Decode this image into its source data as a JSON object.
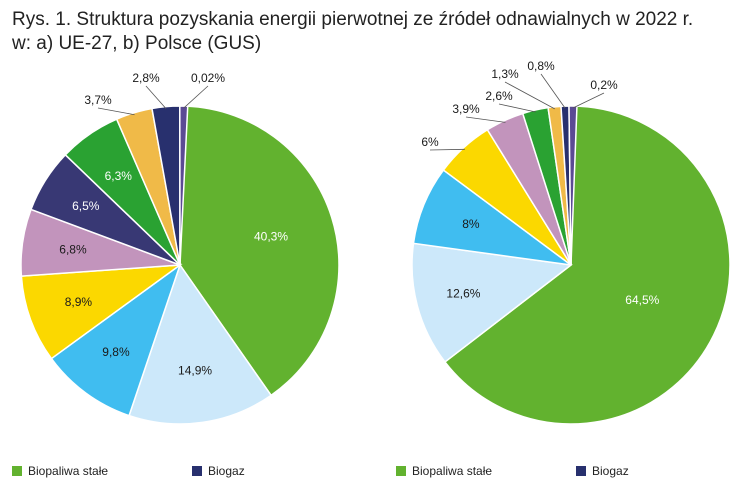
{
  "title_line1": "Rys. 1. Struktura pozyskania energii pierwotnej ze źródeł odnawialnych w 2022 r.",
  "title_line2": "w: a) UE-27, b) Polsce (GUS)",
  "colors": {
    "biopaliwa_stale": "#62B22F",
    "energia_wiatru": "#CCE8FA",
    "biopaliwa_ciekle": "#40BDF0",
    "energia_sloneczna": "#FBD800",
    "pompy_ciepla": "#C294BC",
    "energia_wody": "#383874",
    "biogaz": "#2AA232",
    "odpady": "#F0BA48",
    "geotermia": "#28306E"
  },
  "chart_data": [
    {
      "type": "pie",
      "title": "",
      "slices": [
        {
          "value": 40.3,
          "label": "40,3%",
          "color": "#62B22F"
        },
        {
          "value": 14.9,
          "label": "14,9%",
          "color": "#CCE8FA"
        },
        {
          "value": 9.8,
          "label": "9,8%",
          "color": "#40BDF0"
        },
        {
          "value": 8.9,
          "label": "8,9%",
          "color": "#FBD800"
        },
        {
          "value": 6.8,
          "label": "6,8%",
          "color": "#C294BC"
        },
        {
          "value": 6.5,
          "label": "6,5%",
          "color": "#383874"
        },
        {
          "value": 6.3,
          "label": "6,3%",
          "color": "#2AA232"
        },
        {
          "value": 3.7,
          "label": "3,7%",
          "color": "#F0BA48"
        },
        {
          "value": 2.8,
          "label": "2,8%",
          "color": "#28306E"
        },
        {
          "value": 0.02,
          "label": "0,02%",
          "color": "#5B4A94"
        }
      ]
    },
    {
      "type": "pie",
      "title": "",
      "slices": [
        {
          "value": 64.5,
          "label": "64,5%",
          "color": "#62B22F"
        },
        {
          "value": 12.6,
          "label": "12,6%",
          "color": "#CCE8FA"
        },
        {
          "value": 8,
          "label": "8%",
          "color": "#40BDF0"
        },
        {
          "value": 6,
          "label": "6%",
          "color": "#FBD800"
        },
        {
          "value": 3.9,
          "label": "3,9%",
          "color": "#C294BC"
        },
        {
          "value": 2.6,
          "label": "2,6%",
          "color": "#2AA232"
        },
        {
          "value": 1.3,
          "label": "1,3%",
          "color": "#F0BA48"
        },
        {
          "value": 0.8,
          "label": "0,8%",
          "color": "#28306E"
        },
        {
          "value": 0.2,
          "label": "0,2%",
          "color": "#5B4A94"
        }
      ]
    }
  ],
  "legend": [
    {
      "label": "Biopaliwa stałe",
      "color": "#62B22F"
    },
    {
      "label": "Biogaz",
      "color": "#28306E"
    },
    {
      "label": "Biopaliwa stałe",
      "color": "#62B22F"
    },
    {
      "label": "Biogaz",
      "color": "#28306E"
    }
  ]
}
